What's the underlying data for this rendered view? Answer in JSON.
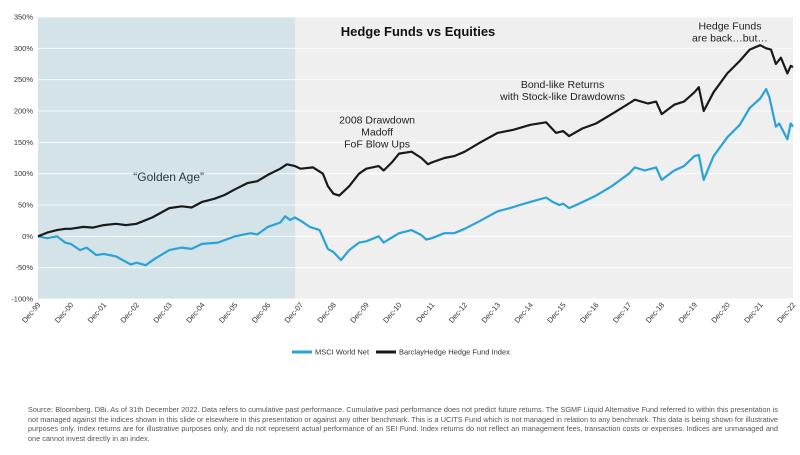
{
  "chart_data": {
    "type": "line",
    "title": "Hedge Funds vs Equities",
    "ylim": [
      -100,
      350
    ],
    "yticks": [
      "350%",
      "300%",
      "250%",
      "200%",
      "150%",
      "100%",
      "50%",
      "0%",
      "-50%",
      "-100%"
    ],
    "ytick_values": [
      350,
      300,
      250,
      200,
      150,
      100,
      50,
      0,
      -50,
      -100
    ],
    "xlim": [
      1999.92,
      2022.92
    ],
    "xticks": [
      "Dec-99",
      "Dec-00",
      "Dec-01",
      "Dec-02",
      "Dec-03",
      "Dec-04",
      "Dec-05",
      "Dec-06",
      "Dec-07",
      "Dec-08",
      "Dec-09",
      "Dec-10",
      "Dec-11",
      "Dec-12",
      "Dec-13",
      "Dec-14",
      "Dec-15",
      "Dec-16",
      "Dec-17",
      "Dec-18",
      "Dec-19",
      "Dec-20",
      "Dec-21",
      "Dec-22"
    ],
    "xtick_values": [
      1999.92,
      2000.92,
      2001.92,
      2002.92,
      2003.92,
      2004.92,
      2005.92,
      2006.92,
      2007.92,
      2008.92,
      2009.92,
      2010.92,
      2011.92,
      2012.92,
      2013.92,
      2014.92,
      2015.92,
      2016.92,
      2017.92,
      2018.92,
      2019.92,
      2020.92,
      2021.92,
      2022.92
    ],
    "grid": true,
    "legend_placement": "bottom-center",
    "shaded_region": {
      "from": 1999.92,
      "to": 2007.75,
      "color": "#d4e3e8"
    },
    "series": [
      {
        "name": "MSCI World Net",
        "color": "#29a3d6",
        "points": [
          [
            1999.92,
            0
          ],
          [
            2000.2,
            -3
          ],
          [
            2000.5,
            0
          ],
          [
            2000.75,
            -10
          ],
          [
            2000.92,
            -12
          ],
          [
            2001.2,
            -22
          ],
          [
            2001.4,
            -18
          ],
          [
            2001.7,
            -30
          ],
          [
            2001.92,
            -28
          ],
          [
            2002.3,
            -32
          ],
          [
            2002.5,
            -38
          ],
          [
            2002.75,
            -45
          ],
          [
            2002.92,
            -42
          ],
          [
            2003.2,
            -46
          ],
          [
            2003.5,
            -35
          ],
          [
            2003.92,
            -22
          ],
          [
            2004.3,
            -18
          ],
          [
            2004.6,
            -20
          ],
          [
            2004.92,
            -12
          ],
          [
            2005.4,
            -10
          ],
          [
            2005.92,
            0
          ],
          [
            2006.4,
            5
          ],
          [
            2006.6,
            3
          ],
          [
            2006.92,
            15
          ],
          [
            2007.3,
            22
          ],
          [
            2007.45,
            32
          ],
          [
            2007.6,
            26
          ],
          [
            2007.75,
            30
          ],
          [
            2007.92,
            25
          ],
          [
            2008.2,
            15
          ],
          [
            2008.5,
            10
          ],
          [
            2008.75,
            -20
          ],
          [
            2008.92,
            -25
          ],
          [
            2009.15,
            -38
          ],
          [
            2009.4,
            -22
          ],
          [
            2009.7,
            -10
          ],
          [
            2009.92,
            -8
          ],
          [
            2010.3,
            0
          ],
          [
            2010.45,
            -10
          ],
          [
            2010.6,
            -5
          ],
          [
            2010.92,
            5
          ],
          [
            2011.3,
            10
          ],
          [
            2011.6,
            2
          ],
          [
            2011.75,
            -5
          ],
          [
            2011.92,
            -3
          ],
          [
            2012.3,
            5
          ],
          [
            2012.6,
            5
          ],
          [
            2012.92,
            12
          ],
          [
            2013.4,
            25
          ],
          [
            2013.92,
            40
          ],
          [
            2014.3,
            45
          ],
          [
            2014.6,
            50
          ],
          [
            2014.92,
            55
          ],
          [
            2015.4,
            62
          ],
          [
            2015.6,
            55
          ],
          [
            2015.8,
            50
          ],
          [
            2015.92,
            52
          ],
          [
            2016.1,
            45
          ],
          [
            2016.4,
            52
          ],
          [
            2016.92,
            65
          ],
          [
            2017.4,
            80
          ],
          [
            2017.92,
            100
          ],
          [
            2018.1,
            110
          ],
          [
            2018.4,
            105
          ],
          [
            2018.75,
            110
          ],
          [
            2018.92,
            90
          ],
          [
            2019.3,
            105
          ],
          [
            2019.6,
            112
          ],
          [
            2019.92,
            128
          ],
          [
            2020.05,
            130
          ],
          [
            2020.2,
            90
          ],
          [
            2020.5,
            128
          ],
          [
            2020.92,
            158
          ],
          [
            2021.3,
            178
          ],
          [
            2021.6,
            205
          ],
          [
            2021.92,
            220
          ],
          [
            2022.1,
            235
          ],
          [
            2022.2,
            222
          ],
          [
            2022.4,
            175
          ],
          [
            2022.5,
            180
          ],
          [
            2022.75,
            155
          ],
          [
            2022.85,
            180
          ],
          [
            2022.92,
            175
          ]
        ]
      },
      {
        "name": "BarclayHedge Hedge Fund Index",
        "color": "#1a1a1a",
        "points": [
          [
            1999.92,
            0
          ],
          [
            2000.2,
            6
          ],
          [
            2000.5,
            10
          ],
          [
            2000.75,
            12
          ],
          [
            2000.92,
            12
          ],
          [
            2001.3,
            15
          ],
          [
            2001.6,
            14
          ],
          [
            2001.92,
            18
          ],
          [
            2002.3,
            20
          ],
          [
            2002.6,
            18
          ],
          [
            2002.92,
            20
          ],
          [
            2003.4,
            30
          ],
          [
            2003.92,
            45
          ],
          [
            2004.3,
            48
          ],
          [
            2004.6,
            46
          ],
          [
            2004.92,
            55
          ],
          [
            2005.3,
            60
          ],
          [
            2005.6,
            66
          ],
          [
            2005.92,
            75
          ],
          [
            2006.3,
            85
          ],
          [
            2006.6,
            88
          ],
          [
            2006.92,
            98
          ],
          [
            2007.3,
            108
          ],
          [
            2007.5,
            115
          ],
          [
            2007.75,
            112
          ],
          [
            2007.92,
            108
          ],
          [
            2008.3,
            110
          ],
          [
            2008.6,
            100
          ],
          [
            2008.75,
            80
          ],
          [
            2008.92,
            68
          ],
          [
            2009.1,
            65
          ],
          [
            2009.4,
            80
          ],
          [
            2009.7,
            100
          ],
          [
            2009.92,
            108
          ],
          [
            2010.3,
            112
          ],
          [
            2010.45,
            105
          ],
          [
            2010.7,
            118
          ],
          [
            2010.92,
            132
          ],
          [
            2011.3,
            135
          ],
          [
            2011.6,
            125
          ],
          [
            2011.8,
            115
          ],
          [
            2011.92,
            118
          ],
          [
            2012.3,
            125
          ],
          [
            2012.6,
            128
          ],
          [
            2012.92,
            135
          ],
          [
            2013.4,
            150
          ],
          [
            2013.92,
            165
          ],
          [
            2014.4,
            170
          ],
          [
            2014.92,
            178
          ],
          [
            2015.4,
            182
          ],
          [
            2015.7,
            165
          ],
          [
            2015.92,
            168
          ],
          [
            2016.1,
            160
          ],
          [
            2016.5,
            172
          ],
          [
            2016.92,
            180
          ],
          [
            2017.4,
            195
          ],
          [
            2017.92,
            212
          ],
          [
            2018.1,
            218
          ],
          [
            2018.5,
            212
          ],
          [
            2018.75,
            215
          ],
          [
            2018.92,
            195
          ],
          [
            2019.3,
            210
          ],
          [
            2019.6,
            215
          ],
          [
            2019.92,
            230
          ],
          [
            2020.05,
            238
          ],
          [
            2020.2,
            200
          ],
          [
            2020.5,
            230
          ],
          [
            2020.92,
            260
          ],
          [
            2021.3,
            280
          ],
          [
            2021.6,
            298
          ],
          [
            2021.92,
            305
          ],
          [
            2022.1,
            300
          ],
          [
            2022.25,
            298
          ],
          [
            2022.4,
            275
          ],
          [
            2022.55,
            285
          ],
          [
            2022.75,
            260
          ],
          [
            2022.85,
            272
          ],
          [
            2022.92,
            270
          ]
        ]
      }
    ],
    "annotations": [
      {
        "lines": [
          "Hedge Funds",
          "are back…but…"
        ],
        "x": 2021.0,
        "y": 330
      },
      {
        "lines": [
          "Bond-like Returns",
          "with Stock-like Drawdowns"
        ],
        "x": 2015.9,
        "y": 237
      },
      {
        "lines": [
          "2008 Drawdown",
          "Madoff",
          "FoF Blow Ups"
        ],
        "x": 2010.25,
        "y": 180
      },
      {
        "lines": [
          "“Golden Age”"
        ],
        "x": 2003.9,
        "y": 88,
        "style": "golden"
      }
    ]
  },
  "footnote": "Source: Bloomberg. DBi. As of 31th December 2022. Data refers to cumulative past performance. Cumulative past performance does not predict future returns. The SGMF Liquid Alternative Fund referred to within this presentation is not managed against the indices shown in this slide or elsewhere in this presentation or against any other benchmark. This is a UCITS Fund which is not managed in relation to any benchmark. This data is being shown for illustrative purposes only. Index returns are for illustrative purposes only, and do not represent actual performance of an SEI Fund. Index returns do not reflect an management fees, transaction costs or expenses. Indices are unmanaged and one cannot invest directly in an index."
}
